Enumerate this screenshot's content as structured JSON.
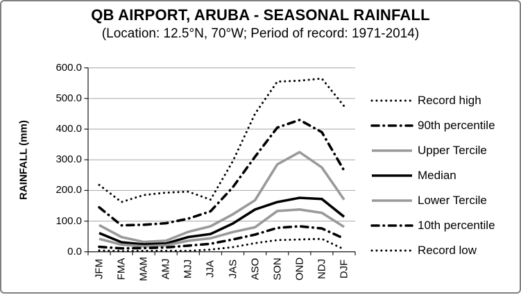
{
  "colors": {
    "series_black": "#000000",
    "series_gray": "#999999",
    "gridline": "#a6a6a6",
    "axis": "#262626",
    "frame_border": "#7f7f7f"
  },
  "chart_data": {
    "type": "line",
    "title": "QB AIRPORT, ARUBA - SEASONAL RAINFALL",
    "subtitle": "(Location: 12.5°N, 70°W; Period of record: 1971-2014)",
    "ylabel": "RAINFALL (mm)",
    "xlabel": "",
    "ylim": [
      0,
      600
    ],
    "grid": true,
    "legend_position": "right",
    "y_ticks": [
      "600.0",
      "500.0",
      "400.0",
      "300.0",
      "200.0",
      "100.0",
      "0.0"
    ],
    "y_tick_values": [
      600,
      500,
      400,
      300,
      200,
      100,
      0
    ],
    "categories": [
      "JFM",
      "FMA",
      "MAM",
      "AMJ",
      "MJJ",
      "JJA",
      "JAS",
      "ASO",
      "SON",
      "OND",
      "NDJ",
      "DJF"
    ],
    "series": [
      {
        "name": "Record high",
        "style": "dotted",
        "color": "#000000",
        "values": [
          218,
          162,
          185,
          193,
          196,
          170,
          295,
          450,
          555,
          558,
          565,
          475
        ]
      },
      {
        "name": "90th percentile",
        "style": "dashdot",
        "color": "#000000",
        "values": [
          145,
          86,
          88,
          93,
          108,
          132,
          210,
          310,
          405,
          430,
          390,
          265
        ]
      },
      {
        "name": "Upper Tercile",
        "style": "solid",
        "color": "#999999",
        "values": [
          87,
          48,
          32,
          36,
          65,
          83,
          122,
          168,
          285,
          325,
          275,
          170
        ]
      },
      {
        "name": "Median",
        "style": "solid",
        "color": "#000000",
        "values": [
          61,
          31,
          24,
          27,
          48,
          58,
          92,
          138,
          162,
          176,
          172,
          114
        ]
      },
      {
        "name": "Lower Tercile",
        "style": "solid",
        "color": "#999999",
        "values": [
          42,
          23,
          18,
          21,
          36,
          44,
          64,
          80,
          133,
          138,
          127,
          81
        ]
      },
      {
        "name": "10th percentile",
        "style": "dashdot",
        "color": "#000000",
        "values": [
          16,
          11,
          12,
          14,
          20,
          26,
          40,
          56,
          78,
          83,
          76,
          43
        ]
      },
      {
        "name": "Record low",
        "style": "dotted",
        "color": "#000000",
        "values": [
          4,
          2,
          3,
          3,
          3,
          7,
          15,
          28,
          38,
          40,
          42,
          8
        ]
      }
    ]
  }
}
